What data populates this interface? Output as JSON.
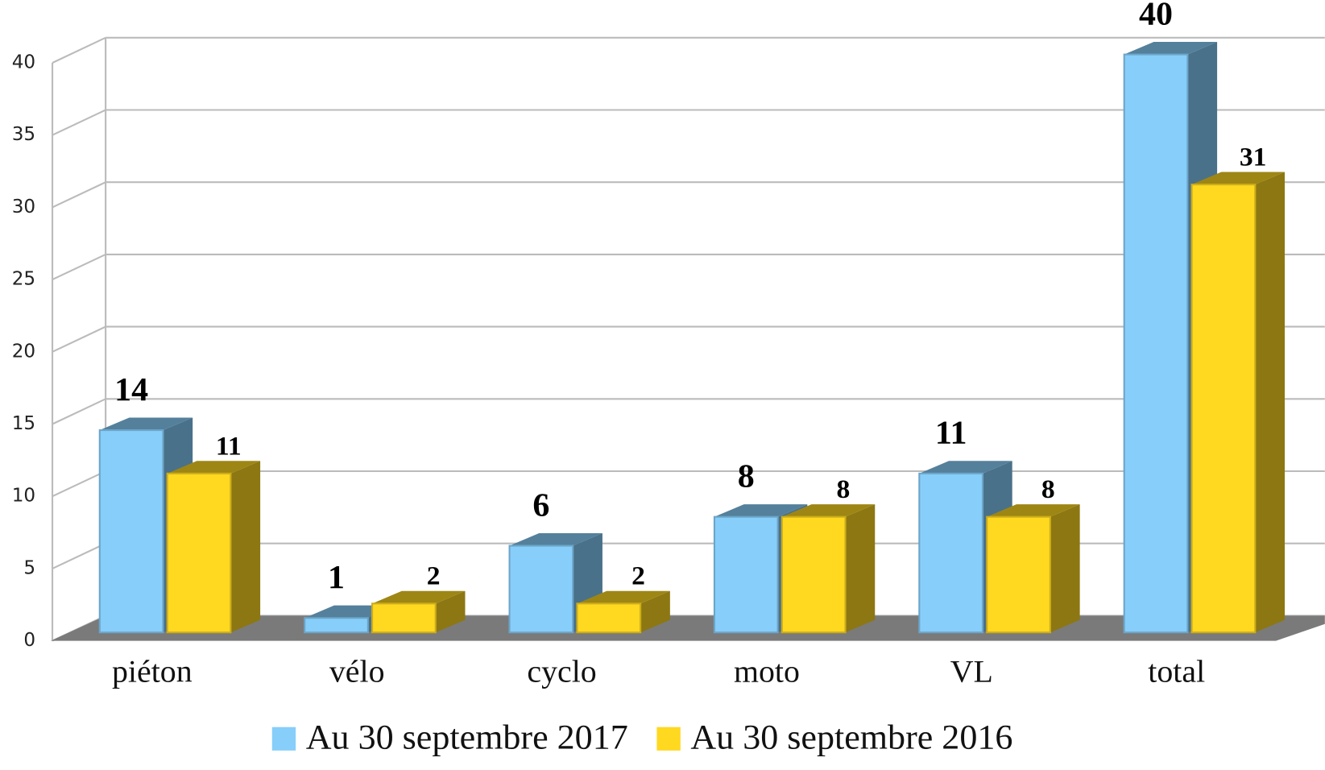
{
  "chart_data": {
    "type": "bar3d",
    "categories": [
      "piéton",
      "vélo",
      "cyclo",
      "moto",
      "VL",
      "total"
    ],
    "series": [
      {
        "name": "Au 30 septembre 2017",
        "color": "#87cefa",
        "values": [
          14,
          1,
          6,
          8,
          11,
          40
        ]
      },
      {
        "name": "Au 30 septembre 2016",
        "color": "#ffd820",
        "values": [
          11,
          2,
          2,
          8,
          8,
          31
        ]
      }
    ],
    "ylim": [
      0,
      40
    ],
    "yticks": [
      0,
      5,
      10,
      15,
      20,
      25,
      30,
      35,
      40
    ],
    "grid": true,
    "legend": "bottom"
  }
}
